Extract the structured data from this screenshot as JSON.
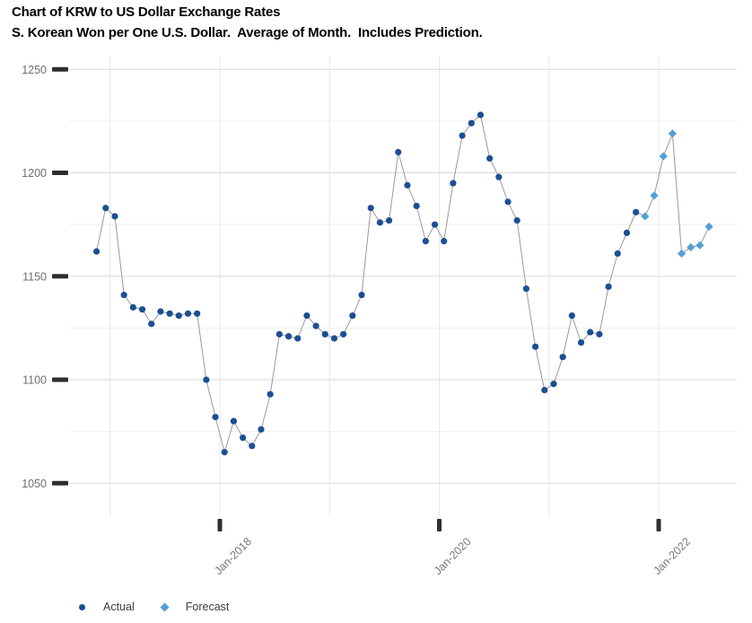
{
  "header": {
    "title": "Chart of KRW to US Dollar Exchange Rates",
    "subtitle": "S. Korean Won per One U.S. Dollar.  Average of Month.  Includes Prediction."
  },
  "colors": {
    "actual": "#1b4f94",
    "forecast": "#54a0d7",
    "series_line": "#999999",
    "grid_major": "#d8d8d8",
    "grid_minor": "#eeeeee",
    "grid_vertical": "#e8e8e8",
    "axis_tick": "#2e2e2e",
    "y_tick_text": "#6e6e6e",
    "x_tick_text": "#787878",
    "legend_text": "#3c3c3c",
    "title_text": "#000000"
  },
  "legend": {
    "actual_label": "Actual",
    "forecast_label": "Forecast",
    "actual_marker": "circle-icon",
    "forecast_marker": "diamond-icon"
  },
  "chart_data": {
    "type": "line",
    "title": "Chart of KRW to US Dollar Exchange Rates",
    "subtitle": "S. Korean Won per One U.S. Dollar.  Average of Month.  Includes Prediction.",
    "ylabel": "",
    "xlabel": "",
    "ylim": [
      1040,
      1255
    ],
    "yticks": [
      1050,
      1100,
      1150,
      1200,
      1250
    ],
    "y_minor_gridlines": [
      1075,
      1125,
      1175,
      1225
    ],
    "x_axis": {
      "gridline_years": [
        2017,
        2018,
        2019,
        2020,
        2021,
        2022
      ],
      "labeled_ticks": [
        {
          "label": "Jan-2018",
          "year": 2018
        },
        {
          "label": "Jan-2020",
          "year": 2020
        },
        {
          "label": "Jan-2022",
          "year": 2022
        }
      ]
    },
    "grid": true,
    "legend_position": "bottom-left",
    "series": [
      {
        "name": "Actual",
        "marker": "circle",
        "points": [
          [
            "Nov-2016",
            1162
          ],
          [
            "Dec-2016",
            1183
          ],
          [
            "Jan-2017",
            1179
          ],
          [
            "Feb-2017",
            1141
          ],
          [
            "Mar-2017",
            1135
          ],
          [
            "Apr-2017",
            1134
          ],
          [
            "May-2017",
            1127
          ],
          [
            "Jun-2017",
            1133
          ],
          [
            "Jul-2017",
            1132
          ],
          [
            "Aug-2017",
            1131
          ],
          [
            "Sep-2017",
            1132
          ],
          [
            "Oct-2017",
            1132
          ],
          [
            "Nov-2017",
            1100
          ],
          [
            "Dec-2017",
            1082
          ],
          [
            "Jan-2018",
            1065
          ],
          [
            "Feb-2018",
            1080
          ],
          [
            "Mar-2018",
            1072
          ],
          [
            "Apr-2018",
            1068
          ],
          [
            "May-2018",
            1076
          ],
          [
            "Jun-2018",
            1093
          ],
          [
            "Jul-2018",
            1122
          ],
          [
            "Aug-2018",
            1121
          ],
          [
            "Sep-2018",
            1120
          ],
          [
            "Oct-2018",
            1131
          ],
          [
            "Nov-2018",
            1126
          ],
          [
            "Dec-2018",
            1122
          ],
          [
            "Jan-2019",
            1120
          ],
          [
            "Feb-2019",
            1122
          ],
          [
            "Mar-2019",
            1131
          ],
          [
            "Apr-2019",
            1141
          ],
          [
            "May-2019",
            1183
          ],
          [
            "Jun-2019",
            1176
          ],
          [
            "Jul-2019",
            1177
          ],
          [
            "Aug-2019",
            1210
          ],
          [
            "Sep-2019",
            1194
          ],
          [
            "Oct-2019",
            1184
          ],
          [
            "Nov-2019",
            1167
          ],
          [
            "Dec-2019",
            1175
          ],
          [
            "Jan-2020",
            1167
          ],
          [
            "Feb-2020",
            1195
          ],
          [
            "Mar-2020",
            1218
          ],
          [
            "Apr-2020",
            1224
          ],
          [
            "May-2020",
            1228
          ],
          [
            "Jun-2020",
            1207
          ],
          [
            "Jul-2020",
            1198
          ],
          [
            "Aug-2020",
            1186
          ],
          [
            "Sep-2020",
            1177
          ],
          [
            "Oct-2020",
            1144
          ],
          [
            "Nov-2020",
            1116
          ],
          [
            "Dec-2020",
            1095
          ],
          [
            "Jan-2021",
            1098
          ],
          [
            "Feb-2021",
            1111
          ],
          [
            "Mar-2021",
            1131
          ],
          [
            "Apr-2021",
            1118
          ],
          [
            "May-2021",
            1123
          ],
          [
            "Jun-2021",
            1122
          ],
          [
            "Jul-2021",
            1145
          ],
          [
            "Aug-2021",
            1161
          ],
          [
            "Sep-2021",
            1171
          ],
          [
            "Oct-2021",
            1181
          ]
        ]
      },
      {
        "name": "Forecast",
        "marker": "diamond",
        "points": [
          [
            "Nov-2021",
            1179
          ],
          [
            "Dec-2021",
            1189
          ],
          [
            "Jan-2022",
            1208
          ],
          [
            "Feb-2022",
            1219
          ],
          [
            "Mar-2022",
            1161
          ],
          [
            "Apr-2022",
            1164
          ],
          [
            "May-2022",
            1165
          ],
          [
            "Jun-2022",
            1174
          ]
        ]
      }
    ]
  }
}
